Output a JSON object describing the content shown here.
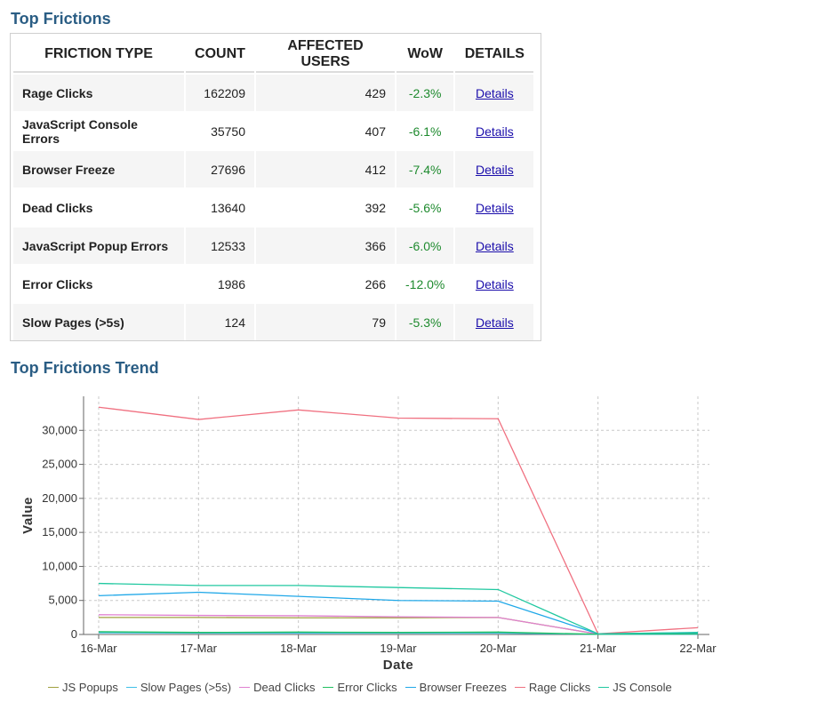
{
  "frictions": {
    "title": "Top Frictions",
    "columns": [
      "FRICTION TYPE",
      "COUNT",
      "AFFECTED USERS",
      "WoW",
      "DETAILS"
    ],
    "rows": [
      {
        "type": "Rage Clicks",
        "count": "162209",
        "users": "429",
        "wow": "-2.3%",
        "details": "Details"
      },
      {
        "type": "JavaScript Console Errors",
        "count": "35750",
        "users": "407",
        "wow": "-6.1%",
        "details": "Details"
      },
      {
        "type": "Browser Freeze",
        "count": "27696",
        "users": "412",
        "wow": "-7.4%",
        "details": "Details"
      },
      {
        "type": "Dead Clicks",
        "count": "13640",
        "users": "392",
        "wow": "-5.6%",
        "details": "Details"
      },
      {
        "type": "JavaScript Popup Errors",
        "count": "12533",
        "users": "366",
        "wow": "-6.0%",
        "details": "Details"
      },
      {
        "type": "Error Clicks",
        "count": "1986",
        "users": "266",
        "wow": "-12.0%",
        "details": "Details"
      },
      {
        "type": "Slow Pages (>5s)",
        "count": "124",
        "users": "79",
        "wow": "-5.3%",
        "details": "Details"
      }
    ],
    "wow_color": "#1e8a2e",
    "link_color": "#1a0dab"
  },
  "trend": {
    "title": "Top Frictions Trend"
  },
  "chart_data": {
    "type": "line",
    "title": "",
    "xlabel": "Date",
    "ylabel": "Value",
    "categories": [
      "16-Mar",
      "17-Mar",
      "18-Mar",
      "19-Mar",
      "20-Mar",
      "21-Mar",
      "22-Mar"
    ],
    "ylim": [
      0,
      35000
    ],
    "yticks": [
      0,
      5000,
      10000,
      15000,
      20000,
      25000,
      30000
    ],
    "ytick_labels": [
      "0",
      "5,000",
      "10,000",
      "15,000",
      "20,000",
      "25,000",
      "30,000"
    ],
    "grid": true,
    "legend_position": "bottom",
    "series": [
      {
        "name": "JS Popups",
        "color": "#a0a040",
        "values": [
          2500,
          2500,
          2450,
          2450,
          2500,
          50,
          150
        ]
      },
      {
        "name": "Slow Pages (>5s)",
        "color": "#40c0e8",
        "values": [
          250,
          200,
          200,
          200,
          200,
          20,
          40
        ]
      },
      {
        "name": "Dead Clicks",
        "color": "#e080d0",
        "values": [
          2900,
          2800,
          2750,
          2600,
          2500,
          50,
          200
        ]
      },
      {
        "name": "Error Clicks",
        "color": "#20c060",
        "values": [
          400,
          300,
          350,
          300,
          350,
          30,
          100
        ]
      },
      {
        "name": "Browser Freezes",
        "color": "#20a8e8",
        "values": [
          5700,
          6200,
          5600,
          5000,
          4900,
          100,
          250
        ]
      },
      {
        "name": "Rage Clicks",
        "color": "#f07080",
        "values": [
          33400,
          31600,
          33000,
          31800,
          31700,
          100,
          1000
        ]
      },
      {
        "name": "JS Console",
        "color": "#20c8a0",
        "values": [
          7500,
          7200,
          7200,
          6900,
          6600,
          100,
          300
        ]
      }
    ]
  }
}
